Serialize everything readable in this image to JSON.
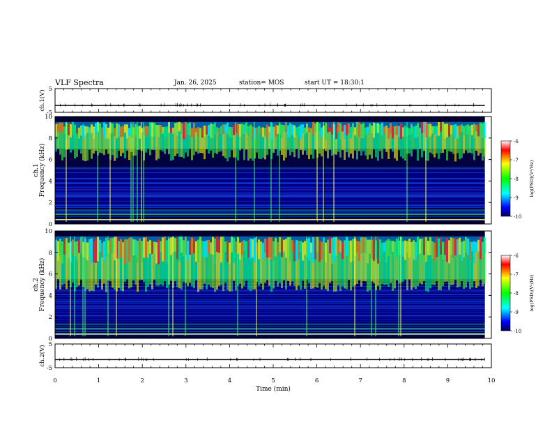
{
  "header": {
    "title": "VLF Spectra",
    "date": "Jan. 26, 2025",
    "station": "station= MOS",
    "start": "start UT =  18:30:1"
  },
  "chart_data": [
    {
      "type": "line",
      "ylabel": "ch.1(V)",
      "ylim": [
        -5,
        5
      ],
      "yticks": [
        "5",
        "-5"
      ],
      "values_description_level": -2.1
    },
    {
      "type": "heatmap",
      "ylabel_top": "ch.1",
      "ylabel": "Frequency (kHz)",
      "ylim": [
        0,
        10
      ],
      "yticks": [
        "0",
        "2",
        "4",
        "6",
        "8",
        "10"
      ],
      "colorbar": {
        "label": "log(PSD)(V²/Hz)",
        "range": [
          -10,
          -6
        ],
        "ticks": [
          "-6",
          "-7",
          "-8",
          "-9",
          "-10"
        ]
      },
      "band_khz": [
        7.0,
        9.5
      ]
    },
    {
      "type": "heatmap",
      "ylabel_top": "ch.2",
      "ylabel": "Frequency (kHz)",
      "ylim": [
        0,
        10
      ],
      "yticks": [
        "0",
        "2",
        "4",
        "6",
        "8",
        "10"
      ],
      "colorbar": {
        "label": "log(PSD)(V²/Hz)",
        "range": [
          -10,
          -6
        ],
        "ticks": [
          "-6",
          "-7",
          "-8",
          "-9",
          "-10"
        ]
      },
      "band_khz": [
        5.5,
        9.5
      ]
    },
    {
      "type": "line",
      "ylabel": "ch.2(V)",
      "ylim": [
        -5,
        5
      ],
      "yticks": [
        "5",
        "-5"
      ],
      "values_description_level": -1.6
    }
  ],
  "xaxis": {
    "label": "Time (min)",
    "range": [
      0,
      10
    ],
    "ticks": [
      "0",
      "1",
      "2",
      "3",
      "4",
      "5",
      "6",
      "7",
      "8",
      "9",
      "10"
    ]
  }
}
